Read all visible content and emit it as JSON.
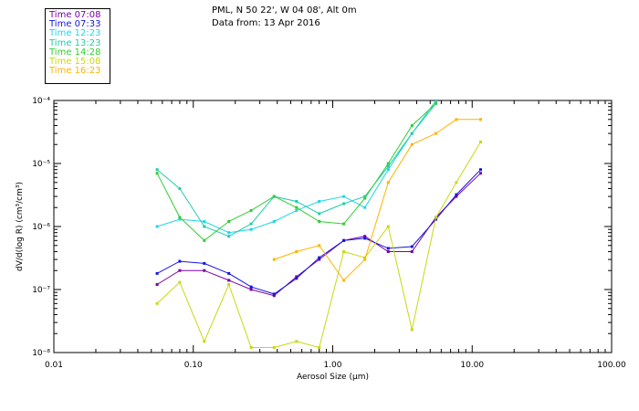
{
  "header": {
    "location": "PML, N 50 22', W 04 08', Alt 0m",
    "date_line": "Data from: 13 Apr 2016"
  },
  "chart_data": {
    "type": "line",
    "xlabel": "Aerosol Size (μm)",
    "ylabel": "dV/d(log R) (cm³/cm³)",
    "xscale": "log",
    "yscale": "log",
    "xlim": [
      0.01,
      100
    ],
    "ylim": [
      1e-08,
      0.0001
    ],
    "x_ticks": [
      0.01,
      0.1,
      1,
      10,
      100
    ],
    "x_tick_labels": [
      "0.01",
      "0.10",
      "1.00",
      "10.00",
      "100.00"
    ],
    "y_ticks": [
      1e-08,
      1e-07,
      1e-06,
      1e-05,
      0.0001
    ],
    "y_tick_labels": [
      "10⁻⁸",
      "10⁻⁷",
      "10⁻⁶",
      "10⁻⁵",
      "10⁻⁴"
    ],
    "legend": "top-left",
    "series": [
      {
        "name": "Time 07:08",
        "color": "#7a00a8",
        "points": [
          [
            0.055,
            1.2e-07
          ],
          [
            0.08,
            2e-07
          ],
          [
            0.12,
            2e-07
          ],
          [
            0.18,
            1.4e-07
          ],
          [
            0.26,
            1e-07
          ],
          [
            0.38,
            8e-08
          ],
          [
            0.55,
            1.6e-07
          ],
          [
            0.8,
            3e-07
          ],
          [
            1.2,
            6e-07
          ],
          [
            1.7,
            7e-07
          ],
          [
            2.5,
            4e-07
          ],
          [
            3.7,
            4e-07
          ],
          [
            5.5,
            1.4e-06
          ],
          [
            7.7,
            3e-06
          ],
          [
            11.5,
            7e-06
          ]
        ]
      },
      {
        "name": "Time 07:33",
        "color": "#1515e0",
        "points": [
          [
            0.055,
            1.8e-07
          ],
          [
            0.08,
            2.8e-07
          ],
          [
            0.12,
            2.6e-07
          ],
          [
            0.18,
            1.8e-07
          ],
          [
            0.26,
            1.1e-07
          ],
          [
            0.38,
            8.5e-08
          ],
          [
            0.55,
            1.5e-07
          ],
          [
            0.8,
            3.2e-07
          ],
          [
            1.2,
            6e-07
          ],
          [
            1.7,
            6.5e-07
          ],
          [
            2.5,
            4.5e-07
          ],
          [
            3.7,
            4.8e-07
          ],
          [
            5.5,
            1.3e-06
          ],
          [
            7.7,
            3.2e-06
          ],
          [
            11.5,
            8e-06
          ]
        ]
      },
      {
        "name": "Time 12:23",
        "color": "#1fd6e8",
        "points": [
          [
            0.055,
            1e-06
          ],
          [
            0.08,
            1.3e-06
          ],
          [
            0.12,
            1.2e-06
          ],
          [
            0.18,
            8e-07
          ],
          [
            0.26,
            9e-07
          ],
          [
            0.38,
            1.2e-06
          ],
          [
            0.55,
            1.8e-06
          ],
          [
            0.8,
            2.5e-06
          ],
          [
            1.2,
            3e-06
          ],
          [
            1.7,
            2e-06
          ],
          [
            2.5,
            8e-06
          ],
          [
            3.7,
            3e-05
          ],
          [
            5.5,
            0.0001
          ]
        ]
      },
      {
        "name": "Time 13:23",
        "color": "#22ccaa",
        "points": [
          [
            0.055,
            8e-06
          ],
          [
            0.08,
            4e-06
          ],
          [
            0.12,
            1e-06
          ],
          [
            0.18,
            7e-07
          ],
          [
            0.26,
            1.1e-06
          ],
          [
            0.38,
            3e-06
          ],
          [
            0.55,
            2.5e-06
          ],
          [
            0.8,
            1.6e-06
          ],
          [
            1.2,
            2.3e-06
          ],
          [
            1.7,
            3e-06
          ],
          [
            2.5,
            9e-06
          ],
          [
            3.7,
            3e-05
          ],
          [
            5.5,
            9e-05
          ]
        ]
      },
      {
        "name": "Time 14:28",
        "color": "#33cc33",
        "points": [
          [
            0.055,
            7e-06
          ],
          [
            0.08,
            1.4e-06
          ],
          [
            0.12,
            6e-07
          ],
          [
            0.18,
            1.2e-06
          ],
          [
            0.26,
            1.8e-06
          ],
          [
            0.38,
            3e-06
          ],
          [
            0.55,
            2e-06
          ],
          [
            0.8,
            1.2e-06
          ],
          [
            1.2,
            1.1e-06
          ],
          [
            1.7,
            2.8e-06
          ],
          [
            2.5,
            1e-05
          ],
          [
            3.7,
            4e-05
          ],
          [
            5.5,
            9e-05
          ]
        ]
      },
      {
        "name": "Time 15:08",
        "color": "#c8d812",
        "points": [
          [
            0.055,
            6e-08
          ],
          [
            0.08,
            1.3e-07
          ],
          [
            0.12,
            1.5e-08
          ],
          [
            0.18,
            1.2e-07
          ],
          [
            0.26,
            1.2e-08
          ],
          [
            0.38,
            1.2e-08
          ],
          [
            0.55,
            1.5e-08
          ],
          [
            0.8,
            1.2e-08
          ],
          [
            1.2,
            4e-07
          ],
          [
            1.7,
            3.2e-07
          ],
          [
            2.5,
            1e-06
          ],
          [
            3.7,
            2.3e-08
          ],
          [
            5.5,
            1.4e-06
          ],
          [
            7.7,
            5e-06
          ],
          [
            11.5,
            2.2e-05
          ]
        ]
      },
      {
        "name": "Time 16:23",
        "color": "#ffb300",
        "points": [
          [
            0.38,
            3e-07
          ],
          [
            0.55,
            4e-07
          ],
          [
            0.8,
            5e-07
          ],
          [
            1.2,
            1.4e-07
          ],
          [
            1.7,
            3e-07
          ],
          [
            2.5,
            5e-06
          ],
          [
            3.7,
            2e-05
          ],
          [
            5.5,
            3e-05
          ],
          [
            7.7,
            5e-05
          ],
          [
            11.5,
            5e-05
          ]
        ]
      }
    ]
  }
}
